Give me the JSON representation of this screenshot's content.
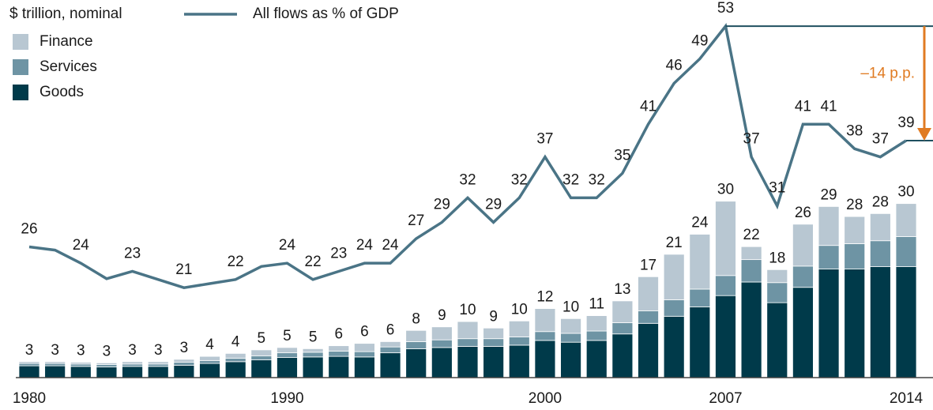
{
  "chart_data": {
    "type": "bar",
    "subtitle": "$ trillion, nominal",
    "annotation": "–14 p.p.",
    "annotation_color": "#e07b22",
    "categories": [
      "1980",
      null,
      null,
      null,
      null,
      null,
      null,
      null,
      null,
      null,
      "1990",
      null,
      null,
      null,
      null,
      null,
      null,
      null,
      null,
      null,
      "2000",
      null,
      null,
      null,
      null,
      null,
      null,
      "2007",
      null,
      null,
      null,
      null,
      null,
      null,
      "2014"
    ],
    "ylim": [
      0,
      64
    ],
    "y2lim": [
      10,
      56.2
    ],
    "series": [
      {
        "name": "Goods",
        "color": "#003a4a",
        "values": [
          2.0,
          2.0,
          1.9,
          1.8,
          1.9,
          1.9,
          2.1,
          2.4,
          2.7,
          3.0,
          3.4,
          3.5,
          3.6,
          3.5,
          4.2,
          4.9,
          5.1,
          5.3,
          5.3,
          5.5,
          6.3,
          6.0,
          6.3,
          7.4,
          9.2,
          10.4,
          12.0,
          13.9,
          16.2,
          12.7,
          15.3,
          18.4,
          18.4,
          18.8,
          18.8
        ]
      },
      {
        "name": "Services",
        "color": "#6e94a4",
        "values": [
          0.4,
          0.4,
          0.4,
          0.4,
          0.4,
          0.4,
          0.5,
          0.5,
          0.6,
          0.7,
          0.8,
          0.8,
          0.9,
          0.9,
          1.0,
          1.2,
          1.3,
          1.3,
          1.3,
          1.4,
          1.5,
          1.5,
          1.6,
          1.9,
          2.1,
          2.8,
          3.0,
          3.4,
          3.8,
          3.4,
          3.6,
          4.0,
          4.3,
          4.4,
          5.1
        ]
      },
      {
        "name": "Finance",
        "color": "#b8c7d2",
        "values": [
          0.3,
          0.3,
          0.3,
          0.3,
          0.4,
          0.4,
          0.5,
          0.7,
          0.8,
          1.0,
          0.9,
          0.6,
          0.9,
          1.4,
          0.9,
          1.9,
          2.2,
          2.9,
          1.8,
          2.7,
          3.9,
          2.5,
          2.6,
          3.7,
          5.8,
          7.7,
          9.3,
          12.6,
          2.2,
          2.2,
          7.1,
          6.6,
          4.6,
          4.6,
          5.6
        ]
      },
      {
        "name": "All flows as % of GDP",
        "color": "#4a7486",
        "type": "line",
        "axis": "y2",
        "values": [
          26,
          25.6,
          24,
          22.1,
          23,
          22,
          21,
          21.5,
          22,
          23.6,
          24,
          22,
          23,
          24,
          24,
          27,
          29,
          32,
          29,
          32,
          37,
          32,
          32,
          35,
          41,
          46,
          49,
          53,
          37,
          31,
          41,
          41,
          38,
          37,
          39
        ],
        "value_labels": [
          "26",
          null,
          "24",
          null,
          "23",
          null,
          "21",
          null,
          "22",
          null,
          "24",
          "22",
          "23",
          "24",
          "24",
          "27",
          "29",
          "32",
          "29",
          "32",
          "37",
          "32",
          "32",
          "35",
          "41",
          "46",
          "49",
          "53",
          "37",
          "31",
          "41",
          "41",
          "38",
          "37",
          "39"
        ]
      }
    ],
    "totals": [
      3,
      3,
      3,
      3,
      3,
      3,
      3,
      4,
      4,
      5,
      5,
      5,
      6,
      6,
      6,
      8,
      9,
      10,
      9,
      10,
      12,
      10,
      11,
      13,
      17,
      21,
      24,
      30,
      22,
      18,
      26,
      29,
      28,
      28,
      30
    ]
  }
}
